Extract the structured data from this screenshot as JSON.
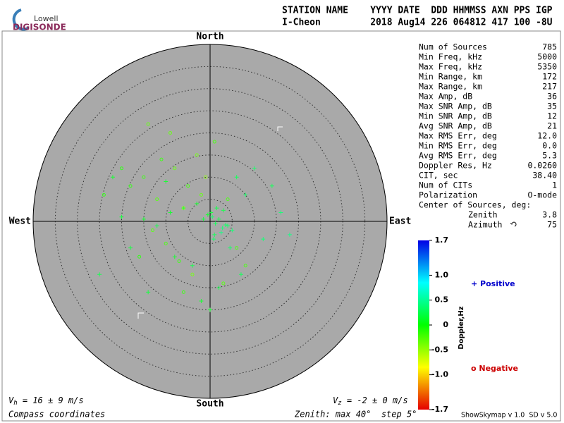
{
  "logo": {
    "top": "Lowell",
    "bottom": "DIGISONDE"
  },
  "header": {
    "line1": "STATION NAME    YYYY DATE  DDD HHMMSS AXN PPS IGP",
    "line2": "I-Cheon         2018 Aug14 226 064812 417 100 -8U"
  },
  "directions": {
    "north": "North",
    "south": "South",
    "east": "East",
    "west": "West"
  },
  "stats": [
    [
      "Num of Sources",
      "785"
    ],
    [
      "Min Freq, kHz",
      "5000"
    ],
    [
      "Max Freq, kHz",
      "5350"
    ],
    [
      "Min Range, km",
      "172"
    ],
    [
      "Max Range, km",
      "217"
    ],
    [
      "Max Amp, dB",
      "36"
    ],
    [
      "Max SNR Amp, dB",
      "35"
    ],
    [
      "Min SNR Amp, dB",
      "12"
    ],
    [
      "Avg SNR Amp, dB",
      "21"
    ],
    [
      "Max RMS Err, deg",
      "12.0"
    ],
    [
      "Min RMS Err, deg",
      "0.0"
    ],
    [
      "Avg RMS Err, deg",
      "5.3"
    ],
    [
      "Doppler Res, Hz",
      "0.0260"
    ],
    [
      "CIT, sec",
      "38.40"
    ],
    [
      "Num of CITs",
      "1"
    ],
    [
      "Polarization",
      "O-mode"
    ]
  ],
  "center": {
    "title": "Center of Sources, deg:",
    "zenith": [
      "Zenith",
      "3.8"
    ],
    "azimuth": [
      "Azimuth",
      "75"
    ]
  },
  "colorbar": {
    "title": "Doppler,Hz",
    "lim": [
      -1.7,
      1.7
    ],
    "ticks": [
      1.7,
      {
        "value": 1.0,
        "label": "1.0"
      },
      0.5,
      0,
      -0.5,
      {
        "value": -1.0,
        "label": "-1.0"
      },
      -1.7
    ]
  },
  "legend": {
    "positive": "+ Positive",
    "negative": "o Negative"
  },
  "velocity": {
    "vh": {
      "symbol": "V",
      "sub": "h",
      "text": " = 16 ± 9 m/s"
    },
    "vz": {
      "symbol": "V",
      "sub": "z",
      "text": " = -2 ± 0 m/s"
    }
  },
  "footer": {
    "coords": "Compass coordinates",
    "zenith": "Zenith: max 40°  step 5°",
    "version": "ShowSkymap v 1.0  SD v 5.0"
  },
  "zenith_max": 40,
  "zenith_step": 5,
  "sources": {
    "east": [
      0.5,
      1.2,
      2.0,
      2.8,
      3.5,
      0.2,
      1.5,
      2.5,
      4.0,
      1.0,
      -0.5,
      -1.5,
      0.8,
      3.0,
      5.0,
      -3.0,
      -6.0,
      -9.0,
      -12.0,
      -15.0,
      -20.0,
      -25.0,
      8.0,
      12.0,
      14.0,
      18.0,
      -8.0,
      -4.0,
      6.0,
      10.0,
      -10.0,
      -18.0,
      2.0,
      -2.0,
      4.5,
      16.0,
      -22.0,
      -14.0,
      7.0,
      0.0,
      -5,
      -8,
      -12,
      -15,
      -3,
      -10,
      -18,
      -6,
      -2,
      1,
      -7,
      -13,
      -20,
      -9,
      4,
      -4,
      -11,
      -16,
      -1,
      6,
      -24,
      -14,
      3,
      -6,
      8
    ],
    "north": [
      1.0,
      -0.5,
      0.5,
      -1.5,
      -0.8,
      2.0,
      3.0,
      -2.5,
      -1.0,
      -3.0,
      1.5,
      0.5,
      -4.0,
      2.5,
      -2.0,
      4.0,
      3.0,
      2.0,
      -1.0,
      0.5,
      1.0,
      -12,
      6,
      -4,
      8,
      -3,
      -8,
      -10,
      10,
      12,
      9,
      -6,
      -15,
      -18,
      -6,
      2,
      10,
      -16,
      -12,
      -20,
      8,
      12,
      5,
      10,
      15,
      -5,
      8,
      3,
      6,
      18,
      -9,
      -2,
      12,
      20,
      5,
      -12,
      14,
      -8,
      10,
      -6,
      6,
      22,
      -14,
      -16,
      -10
    ],
    "doppler": [
      0.3,
      0.25,
      0.2,
      0.35,
      0.3,
      0.15,
      0.2,
      0.4,
      0.3,
      0.25,
      0.1,
      0.15,
      0.3,
      0.2,
      0.35,
      0.1,
      0.15,
      0.1,
      0.2,
      0.1,
      0.15,
      0.2,
      0.3,
      0.35,
      0.25,
      0.4,
      0.1,
      0.2,
      0.25,
      0.3,
      0.1,
      0.15,
      0.2,
      0.1,
      0.3,
      0.35,
      0.1,
      0.15,
      0.25,
      0.1,
      -0.2,
      -0.3,
      -0.25,
      -0.15,
      -0.35,
      -0.2,
      -0.1,
      -0.4,
      -0.3,
      -0.2,
      -0.15,
      -0.25,
      -0.1,
      -0.3,
      -0.2,
      -0.35,
      -0.15,
      -0.1,
      -0.45,
      -0.2,
      -0.1,
      -0.3,
      -0.25,
      -0.15,
      -0.2
    ]
  }
}
